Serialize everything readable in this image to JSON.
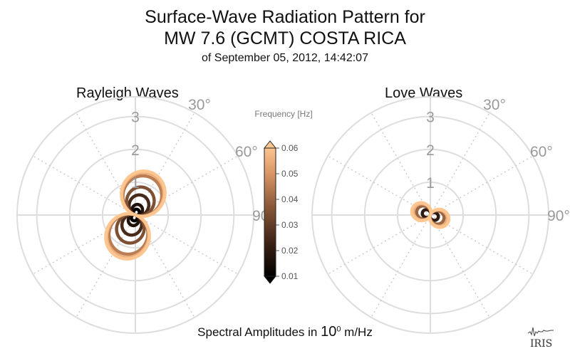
{
  "title": {
    "line1": "Surface-Wave Radiation Pattern for",
    "line2": "MW 7.6 (GCMT) COSTA RICA",
    "line3": "of September 05, 2012, 14:42:07"
  },
  "footer": {
    "prefix": "Spectral Amplitudes in ",
    "base": "10",
    "exponent": "0",
    "unit": " m/Hz"
  },
  "logo": "IRIS",
  "colors": {
    "low_frequency": "#000000",
    "mid_frequency": "#7a4a2e",
    "high_frequency": "#fdb57a",
    "grid": "#dddddd",
    "labels": "#999999"
  },
  "chart_data": [
    {
      "type": "polar",
      "title": "Rayleigh Waves",
      "radial_ticks": [
        "1",
        "2",
        "3"
      ],
      "rmax": 3.6,
      "angle_ticks": [
        "30°",
        "60°",
        "90°"
      ],
      "series": [
        {
          "frequency": 0.01,
          "peak_amplitude": 0.15,
          "peak_azimuth_deg": 200,
          "width": 0.7
        },
        {
          "frequency": 0.017,
          "peak_amplitude": 0.3,
          "peak_azimuth_deg": 200,
          "width": 0.7
        },
        {
          "frequency": 0.025,
          "peak_amplitude": 0.6,
          "peak_azimuth_deg": 200,
          "width": 0.7
        },
        {
          "frequency": 0.035,
          "peak_amplitude": 0.85,
          "peak_azimuth_deg": 200,
          "width": 0.75
        },
        {
          "frequency": 0.045,
          "peak_amplitude": 1.2,
          "peak_azimuth_deg": 200,
          "width": 0.8
        },
        {
          "frequency": 0.055,
          "peak_amplitude": 1.3,
          "peak_azimuth_deg": 200,
          "width": 0.8
        },
        {
          "frequency": 0.06,
          "peak_amplitude": 1.35,
          "peak_azimuth_deg": 200,
          "width": 0.8
        }
      ]
    },
    {
      "type": "polar",
      "title": "Love Waves",
      "radial_ticks": [
        "1",
        "2",
        "3"
      ],
      "rmax": 3.6,
      "angle_ticks": [
        "30°",
        "60°",
        "90°"
      ],
      "series": [
        {
          "frequency": 0.02,
          "peak_amplitude": 0.22,
          "peak_azimuth_deg": 290,
          "width": 0.55
        },
        {
          "frequency": 0.04,
          "peak_amplitude": 0.4,
          "peak_azimuth_deg": 290,
          "width": 0.6
        },
        {
          "frequency": 0.055,
          "peak_amplitude": 0.5,
          "peak_azimuth_deg": 290,
          "width": 0.65
        },
        {
          "frequency": 0.06,
          "peak_amplitude": 0.55,
          "peak_azimuth_deg": 290,
          "width": 0.65
        }
      ]
    }
  ],
  "colorbar": {
    "title": "Frequency [Hz]",
    "ticks": [
      "0.06",
      "0.05",
      "0.04",
      "0.03",
      "0.02",
      "0.01"
    ],
    "vmin": 0.01,
    "vmax": 0.06
  }
}
